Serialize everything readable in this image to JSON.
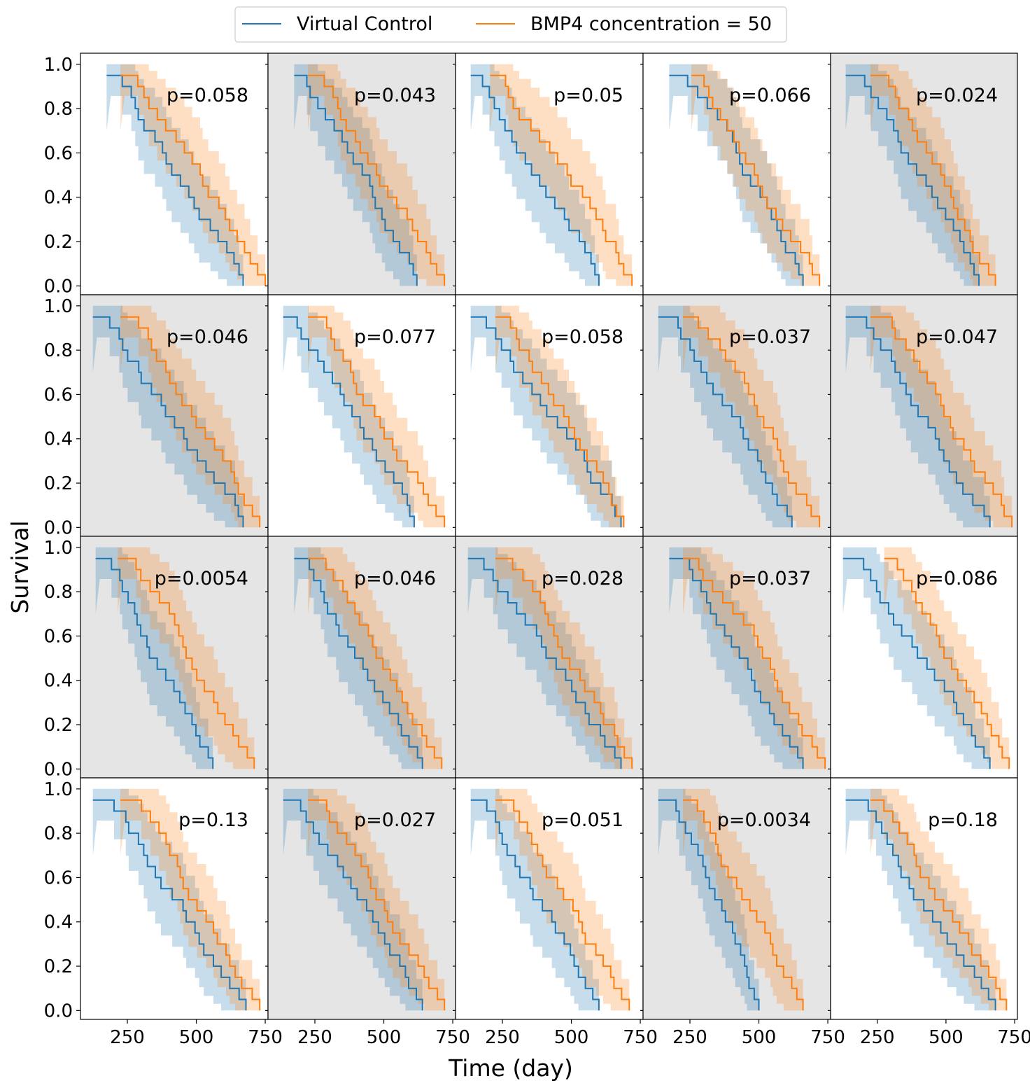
{
  "chart_data": {
    "type": "line",
    "subtype": "kaplan-meier-survival-grid",
    "grid": {
      "rows": 4,
      "cols": 5
    },
    "xlabel": "Time (day)",
    "ylabel": "Survival",
    "xlim": [
      80,
      760
    ],
    "ylim": [
      -0.04,
      1.05
    ],
    "x_ticks": [
      250,
      500,
      750
    ],
    "x_tick_labels": [
      "250",
      "500",
      "750"
    ],
    "y_ticks": [
      0.0,
      0.2,
      0.4,
      0.6,
      0.8,
      1.0
    ],
    "y_tick_labels": [
      "0.0",
      "0.2",
      "0.4",
      "0.6",
      "0.8",
      "1.0"
    ],
    "legend": {
      "position": "top-center",
      "entries": [
        "Virtual Control",
        "BMP4 concentration = 50"
      ]
    },
    "colors": {
      "control": "#1f77b4",
      "treated": "#ff7f0e",
      "significant_background": "#e5e5e5",
      "default_background": "#ffffff"
    },
    "confidence_bands": true,
    "panels": [
      {
        "p_label": "p=0.058",
        "shaded": false,
        "control_span": [
          190,
          670
        ],
        "treated_span": [
          240,
          750
        ]
      },
      {
        "p_label": "p=0.043",
        "shaded": true,
        "control_span": [
          190,
          620
        ],
        "treated_span": [
          240,
          720
        ]
      },
      {
        "p_label": "p=0.05",
        "shaded": false,
        "control_span": [
          150,
          600
        ],
        "treated_span": [
          220,
          720
        ]
      },
      {
        "p_label": "p=0.066",
        "shaded": false,
        "control_span": [
          190,
          660
        ],
        "treated_span": [
          270,
          720
        ]
      },
      {
        "p_label": "p=0.024",
        "shaded": true,
        "control_span": [
          150,
          620
        ],
        "treated_span": [
          240,
          680
        ]
      },
      {
        "p_label": "p=0.046",
        "shaded": true,
        "control_span": [
          140,
          670
        ],
        "treated_span": [
          240,
          730
        ]
      },
      {
        "p_label": "p=0.077",
        "shaded": false,
        "control_span": [
          150,
          610
        ],
        "treated_span": [
          240,
          720
        ]
      },
      {
        "p_label": "p=0.058",
        "shaded": false,
        "control_span": [
          150,
          680
        ],
        "treated_span": [
          240,
          690
        ]
      },
      {
        "p_label": "p=0.037",
        "shaded": true,
        "control_span": [
          150,
          620
        ],
        "treated_span": [
          240,
          720
        ]
      },
      {
        "p_label": "p=0.047",
        "shaded": true,
        "control_span": [
          150,
          660
        ],
        "treated_span": [
          240,
          740
        ]
      },
      {
        "p_label": "p=0.0054",
        "shaded": true,
        "control_span": [
          150,
          560
        ],
        "treated_span": [
          230,
          710
        ]
      },
      {
        "p_label": "p=0.046",
        "shaded": true,
        "control_span": [
          190,
          640
        ],
        "treated_span": [
          240,
          710
        ]
      },
      {
        "p_label": "p=0.028",
        "shaded": true,
        "control_span": [
          140,
          680
        ],
        "treated_span": [
          240,
          720
        ]
      },
      {
        "p_label": "p=0.037",
        "shaded": true,
        "control_span": [
          190,
          660
        ],
        "treated_span": [
          240,
          740
        ]
      },
      {
        "p_label": "p=0.086",
        "shaded": false,
        "control_span": [
          140,
          660
        ],
        "treated_span": [
          290,
          730
        ]
      },
      {
        "p_label": "p=0.13",
        "shaded": false,
        "control_span": [
          140,
          680
        ],
        "treated_span": [
          240,
          730
        ]
      },
      {
        "p_label": "p=0.027",
        "shaded": true,
        "control_span": [
          150,
          640
        ],
        "treated_span": [
          240,
          720
        ]
      },
      {
        "p_label": "p=0.051",
        "shaded": false,
        "control_span": [
          150,
          600
        ],
        "treated_span": [
          240,
          710
        ]
      },
      {
        "p_label": "p=0.0034",
        "shaded": true,
        "control_span": [
          150,
          500
        ],
        "treated_span": [
          240,
          660
        ]
      },
      {
        "p_label": "p=0.18",
        "shaded": false,
        "control_span": [
          150,
          680
        ],
        "treated_span": [
          240,
          720
        ]
      }
    ]
  }
}
